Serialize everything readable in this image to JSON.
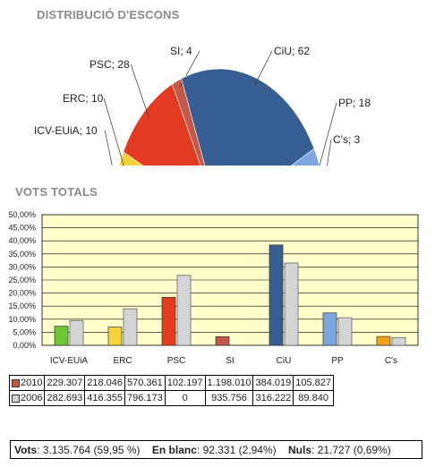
{
  "titles": {
    "seats": "DISTRIBUCIÓ D'ESCONS",
    "votes": "VOTS TOTALS"
  },
  "chart_data": [
    {
      "type": "pie",
      "title": "DISTRIBUCIÓ D'ESCONS",
      "layout": "semicircle",
      "slices": [
        {
          "label": "ICV-EUiA; 10",
          "name": "ICV-EUiA",
          "value": 10,
          "color": "#6cc832"
        },
        {
          "label": "ERC; 10",
          "name": "ERC",
          "value": 10,
          "color": "#f5d23a"
        },
        {
          "label": "PSC; 28",
          "name": "PSC",
          "value": 28,
          "color": "#e23b22"
        },
        {
          "label": "SI; 4",
          "name": "SI",
          "value": 4,
          "color": "#c4584a"
        },
        {
          "label": "CiU; 62",
          "name": "CiU",
          "value": 62,
          "color": "#375e92"
        },
        {
          "label": "PP; 18",
          "name": "PP",
          "value": 18,
          "color": "#7ba6e0"
        },
        {
          "label": "C's; 3",
          "name": "C's",
          "value": 3,
          "color": "#f0a31e"
        }
      ]
    },
    {
      "type": "bar",
      "title": "VOTS TOTALS",
      "categories": [
        "ICV-EUiA",
        "ERC",
        "PSC",
        "SI",
        "CiU",
        "PP",
        "C's"
      ],
      "ylim": [
        0,
        50
      ],
      "yticks": [
        "0,00%",
        "5,00%",
        "10,00%",
        "15,00%",
        "20,00%",
        "25,00%",
        "30,00%",
        "35,00%",
        "40,00%",
        "45,00%",
        "50,00%"
      ],
      "grid": true,
      "background": "#ffffcc",
      "colors_2010": [
        "#6cc832",
        "#f5d23a",
        "#e23b22",
        "#c4584a",
        "#375e92",
        "#7ba6e0",
        "#f0a31e"
      ],
      "color_2006": "#d4d4d4",
      "series": [
        {
          "name": "2010",
          "values": [
            7.3,
            7.0,
            18.4,
            3.3,
            38.4,
            12.4,
            3.4
          ],
          "table_values": [
            "229.307",
            "218.046",
            "570.361",
            "102.197",
            "1.198.010",
            "384.019",
            "105.827"
          ],
          "swatch": "#c4584a"
        },
        {
          "name": "2006",
          "values": [
            9.5,
            14.0,
            26.8,
            0,
            31.5,
            10.6,
            3.0
          ],
          "table_values": [
            "282.693",
            "416.355",
            "796.173",
            "0",
            "935.756",
            "316.222",
            "89.840"
          ],
          "swatch": "#d4d4d4"
        }
      ]
    }
  ],
  "footer": {
    "votes_label": "Vots",
    "votes_value": ": 3.135.764  (59,95 %)",
    "blank_label": "En blanc",
    "blank_value": ": 92.331  (2,94%)",
    "null_label": "Nuls",
    "null_value": ": 21.727  (0,69%)"
  }
}
